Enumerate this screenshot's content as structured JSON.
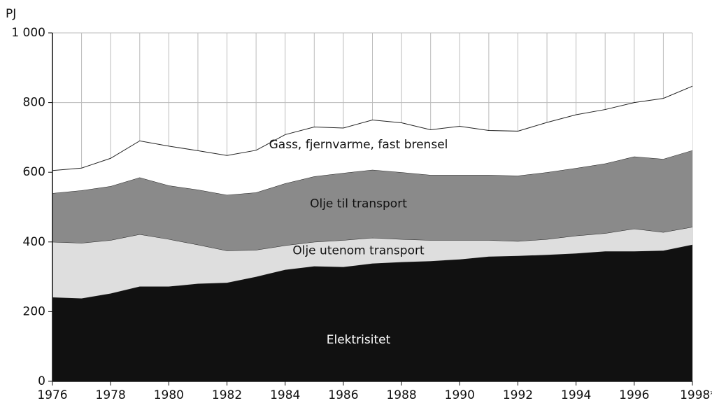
{
  "chart_data": {
    "type": "stacked_area",
    "y_label": "PJ",
    "x": [
      1976,
      1977,
      1978,
      1979,
      1980,
      1981,
      1982,
      1983,
      1984,
      1985,
      1986,
      1987,
      1988,
      1989,
      1990,
      1991,
      1992,
      1993,
      1994,
      1995,
      1996,
      1997,
      1998
    ],
    "xlim": [
      1976,
      1998
    ],
    "xticks": [
      1976,
      1978,
      1980,
      1982,
      1984,
      1986,
      1988,
      1990,
      1992,
      1994,
      1996,
      {
        "value": 1998,
        "label": "1998*"
      }
    ],
    "ylim": [
      0,
      1000
    ],
    "yticks": [
      0,
      200,
      400,
      600,
      800,
      {
        "value": 1000,
        "label": "1 000"
      }
    ],
    "grid": true,
    "series": [
      {
        "name": "Elektrisitet",
        "color": "#111111",
        "values": [
          241,
          238,
          252,
          272,
          272,
          280,
          283,
          300,
          320,
          330,
          328,
          338,
          342,
          345,
          350,
          358,
          360,
          363,
          367,
          373,
          373,
          375,
          392
        ]
      },
      {
        "name": "Olje utenom transport",
        "color": "#dedede",
        "values": [
          159,
          159,
          153,
          150,
          136,
          112,
          92,
          77,
          70,
          70,
          77,
          74,
          66,
          60,
          55,
          47,
          42,
          45,
          51,
          52,
          65,
          53,
          51
        ]
      },
      {
        "name": "Olje til transport",
        "color": "#8a8a8a",
        "values": [
          140,
          151,
          155,
          163,
          154,
          158,
          160,
          165,
          178,
          188,
          193,
          195,
          192,
          187,
          187,
          187,
          188,
          192,
          194,
          200,
          207,
          210,
          220
        ]
      },
      {
        "name": "Gass, fjernvarme, fast brensel",
        "color": "#ffffff",
        "values": [
          65,
          64,
          80,
          105,
          113,
          112,
          113,
          121,
          140,
          142,
          129,
          143,
          142,
          130,
          140,
          128,
          128,
          143,
          153,
          155,
          155,
          174,
          184
        ]
      }
    ]
  }
}
